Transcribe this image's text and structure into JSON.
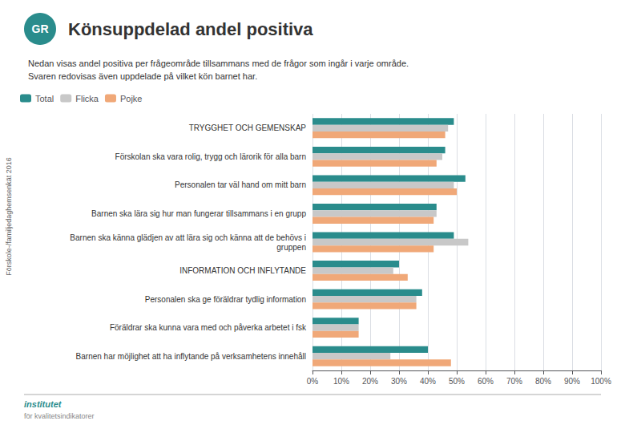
{
  "chart_data": {
    "type": "bar",
    "orientation": "horizontal",
    "title": "Könsuppdelad andel positiva",
    "subtitle": "Nedan visas andel positiva per frågeområde tillsammans med de frågor som ingår i varje område.\nSvaren redovisas även uppdelade på vilket kön barnet har.",
    "annotations": [
      "Förskole-/familjedaghemsenkät 2016",
      "GR",
      "institutet",
      "för kvalitetsindikatorer"
    ],
    "categories": [
      "TRYGGHET OCH GEMENSKAP",
      "Förskolan ska vara rolig, trygg och lärorik för alla barn",
      "Personalen tar väl hand om mitt barn",
      "Barnen ska lära sig hur man fungerar tillsammans i en grupp",
      "Barnen ska känna glädjen av att lära sig och känna att de behövs i\ngruppen",
      "INFORMATION OCH INFLYTANDE",
      "Personalen ska ge föräldrar tydlig information",
      "Föräldrar ska kunna vara med och påverka arbetet i fsk",
      "Barnen har möjlighet att ha inflytande på verksamhetens innehåll"
    ],
    "series": [
      {
        "name": "Total",
        "color": "#2a8c8c",
        "values": [
          0.49,
          0.46,
          0.53,
          0.43,
          0.49,
          0.3,
          0.38,
          0.16,
          0.4
        ]
      },
      {
        "name": "Flicka",
        "color": "#c8c8c8",
        "values": [
          0.47,
          0.45,
          0.49,
          0.43,
          0.54,
          0.28,
          0.36,
          0.16,
          0.27
        ]
      },
      {
        "name": "Pojke",
        "color": "#f0a878",
        "values": [
          0.46,
          0.43,
          0.5,
          0.42,
          0.42,
          0.33,
          0.36,
          0.16,
          0.48
        ]
      }
    ],
    "xlim": [
      0.0,
      1.0
    ],
    "xticks": [
      {
        "value": 0.0,
        "label": "0%"
      },
      {
        "value": 0.1,
        "label": "10%"
      },
      {
        "value": 0.2,
        "label": "20%"
      },
      {
        "value": 0.3,
        "label": "30%"
      },
      {
        "value": 0.4,
        "label": "40%"
      },
      {
        "value": 0.5,
        "label": "50%"
      },
      {
        "value": 0.6,
        "label": "60%"
      },
      {
        "value": 0.7,
        "label": "70%"
      },
      {
        "value": 0.8,
        "label": "80%"
      },
      {
        "value": 0.9,
        "label": "90%"
      },
      {
        "value": 1.0,
        "label": "100%"
      }
    ],
    "grid": true,
    "legend": "upper left"
  }
}
